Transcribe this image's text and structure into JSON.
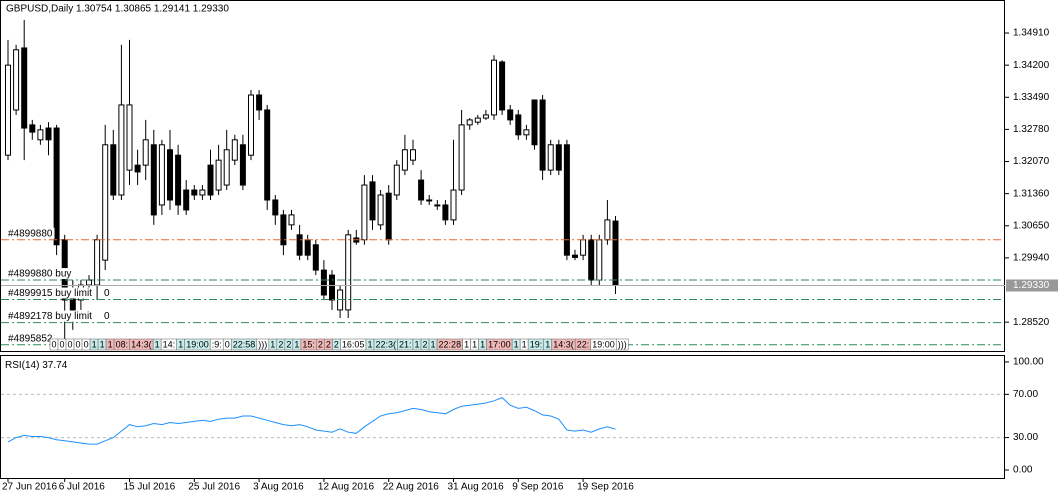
{
  "chart_data": [
    {
      "type": "candlestick",
      "title": "GBPUSD,Daily",
      "header_values": "1.30754 1.30865 1.29141 1.29330",
      "categories": [
        "27 Jun 2016",
        null,
        null,
        null,
        null,
        null,
        null,
        "6 Jul 2016",
        null,
        null,
        null,
        null,
        null,
        null,
        null,
        "15 Jul 2016",
        null,
        null,
        null,
        null,
        null,
        null,
        null,
        "25 Jul 2016",
        null,
        null,
        null,
        null,
        null,
        null,
        null,
        "3 Aug 2016",
        null,
        null,
        null,
        null,
        null,
        null,
        null,
        "12 Aug 2016",
        null,
        null,
        null,
        null,
        null,
        null,
        null,
        "22 Aug 2016",
        null,
        null,
        null,
        null,
        null,
        null,
        null,
        "31 Aug 2016",
        null,
        null,
        null,
        null,
        null,
        null,
        null,
        "9 Sep 2016",
        null,
        null,
        null,
        null,
        null,
        null,
        null,
        "19 Sep 2016",
        null,
        null,
        null,
        null
      ],
      "open": [
        1.3221,
        1.3321,
        1.3458,
        1.3288,
        1.3255,
        1.3281,
        1.3281,
        1.3034,
        1.2923,
        1.2901,
        1.2934,
        1.2934,
        1.2989,
        1.3244,
        1.3133,
        1.3188,
        1.3199,
        1.3199,
        1.3244,
        1.3111,
        1.3233,
        1.3221,
        1.3144,
        1.3144,
        1.3133,
        1.3199,
        1.3144,
        1.3155,
        1.321,
        1.3244,
        1.3221,
        1.3354,
        1.3321,
        1.3122,
        1.3089,
        1.3067,
        1.3045,
        1.3034,
        1.3023,
        1.2967,
        1.2956,
        1.2879,
        1.2879,
        1.3038,
        1.3034,
        1.3162,
        1.3067,
        1.3137,
        1.3133,
        1.3188,
        1.321,
        1.3166,
        1.3122,
        1.3111,
        1.3111,
        1.3078,
        1.3144,
        1.3288,
        1.3294,
        1.3303,
        1.331,
        1.3427,
        1.3321,
        1.331,
        1.3266,
        1.3343,
        1.3343,
        1.3188,
        1.3244,
        1.3244,
        1.3,
        1.3,
        1.3034,
        1.2945,
        1.3034,
        1.30754
      ],
      "high": [
        1.3476,
        1.3465,
        1.352,
        1.3299,
        1.3288,
        1.3294,
        1.3288,
        1.3045,
        1.2945,
        1.2945,
        1.2956,
        1.3045,
        1.3288,
        1.3277,
        1.3465,
        1.3476,
        1.3233,
        1.3299,
        1.3277,
        1.3255,
        1.3277,
        1.3244,
        1.3166,
        1.3155,
        1.3155,
        1.3233,
        1.3244,
        1.3277,
        1.3266,
        1.3266,
        1.3365,
        1.3365,
        1.3332,
        1.3133,
        1.31,
        1.31,
        1.3067,
        1.3045,
        1.3034,
        1.2989,
        1.2967,
        1.2934,
        1.3056,
        1.3056,
        1.3177,
        1.3177,
        1.3144,
        1.3155,
        1.321,
        1.3266,
        1.3255,
        1.3188,
        1.3133,
        1.3122,
        1.3122,
        1.3255,
        1.3321,
        1.3303,
        1.331,
        1.3321,
        1.3442,
        1.3431,
        1.3332,
        1.3321,
        1.3288,
        1.3343,
        1.3354,
        1.3255,
        1.3255,
        1.3255,
        1.3012,
        1.3045,
        1.3045,
        1.3045,
        1.3122,
        1.30865
      ],
      "low": [
        1.321,
        1.331,
        1.321,
        1.3255,
        1.3244,
        1.3221,
        1.3,
        1.2802,
        1.2835,
        1.2879,
        1.2923,
        1.2901,
        1.2967,
        1.3122,
        1.3122,
        1.3155,
        1.3155,
        1.3166,
        1.3067,
        1.3089,
        1.31,
        1.3089,
        1.3089,
        1.3122,
        1.3122,
        1.3122,
        1.3133,
        1.3144,
        1.3199,
        1.3144,
        1.321,
        1.3299,
        1.31,
        1.3067,
        1.3,
        1.3056,
        1.2989,
        1.2989,
        1.2956,
        1.2901,
        1.2879,
        1.2861,
        1.2861,
        1.3023,
        1.3023,
        1.3056,
        1.3056,
        1.3023,
        1.3122,
        1.3177,
        1.3199,
        1.3111,
        1.3111,
        1.31,
        1.3067,
        1.3067,
        1.3133,
        1.3277,
        1.3288,
        1.3299,
        1.3299,
        1.331,
        1.3288,
        1.3255,
        1.3255,
        1.3233,
        1.3166,
        1.3177,
        1.3177,
        1.2989,
        1.2989,
        1.2989,
        1.2934,
        1.2934,
        1.3023,
        1.29141
      ],
      "close": [
        1.342,
        1.3454,
        1.3281,
        1.3272,
        1.3277,
        1.3255,
        1.3023,
        1.2901,
        1.2879,
        1.2934,
        1.2945,
        1.3034,
        1.3244,
        1.3133,
        1.3332,
        1.3332,
        1.3184,
        1.3255,
        1.3089,
        1.3244,
        1.3122,
        1.3111,
        1.31,
        1.3133,
        1.3144,
        1.3133,
        1.321,
        1.3233,
        1.3255,
        1.3155,
        1.3354,
        1.3321,
        1.3122,
        1.3089,
        1.3023,
        1.3089,
        1.3,
        1.3,
        1.2967,
        1.2912,
        1.2901,
        1.2923,
        1.3045,
        1.3029,
        1.3155,
        1.3078,
        1.3133,
        1.3034,
        1.3199,
        1.3233,
        1.3233,
        1.3122,
        1.3122,
        1.3111,
        1.3078,
        1.3144,
        1.3288,
        1.3299,
        1.3303,
        1.331,
        1.3431,
        1.3321,
        1.3299,
        1.3266,
        1.3277,
        1.3244,
        1.3188,
        1.3244,
        1.3188,
        1.3,
        1.2995,
        1.3034,
        1.2945,
        1.3034,
        1.3078,
        1.2933
      ],
      "ylim": [
        1.2786,
        1.3564
      ],
      "yticks": [
        {
          "value": 1.3491,
          "label": "1.34910"
        },
        {
          "value": 1.342,
          "label": "1.34200"
        },
        {
          "value": 1.3349,
          "label": "1.33490"
        },
        {
          "value": 1.3278,
          "label": "1.32780"
        },
        {
          "value": 1.3207,
          "label": "1.32070"
        },
        {
          "value": 1.3136,
          "label": "1.31360"
        },
        {
          "value": 1.3065,
          "label": "1.30650"
        },
        {
          "value": 1.2994,
          "label": "1.29940"
        },
        {
          "value": 1.2852,
          "label": "1.28520"
        }
      ],
      "price_tag": {
        "value": 1.2933,
        "label": "1.29330"
      },
      "orders": [
        {
          "label": "#4899880",
          "value": 1.3034,
          "color": "#e8643c"
        },
        {
          "label": "#4899880 buy",
          "value": 1.2945,
          "color": "#2e8b57"
        },
        {
          "label": "#4899915 buy limit",
          "extra": "0",
          "value": 1.2902,
          "color": "#2e8b57"
        },
        {
          "label": "#4892178 buy limit",
          "extra": "0",
          "value": 1.2851,
          "color": "#2e8b57"
        },
        {
          "label": "#4895852",
          "value": 1.2802,
          "color": "#2e8b57"
        }
      ],
      "time_boxes": [
        {
          "text": "0",
          "color": "#ffffff"
        },
        {
          "text": "0",
          "color": "#ffffff"
        },
        {
          "text": "0",
          "color": "#ffffff"
        },
        {
          "text": "0",
          "color": "#ffffff"
        },
        {
          "text": "0",
          "color": "#ffffff"
        },
        {
          "text": "1",
          "color": "#c8ecec"
        },
        {
          "text": "1",
          "color": "#c8ecec"
        },
        {
          "text": "1",
          "color": "#f2b8b8"
        },
        {
          "text": "08:",
          "color": "#f2b8b8"
        },
        {
          "text": "14:3(",
          "color": "#f2b8b8"
        },
        {
          "text": "1",
          "color": "#c8ecec"
        },
        {
          "text": "14:",
          "color": "#ffffff"
        },
        {
          "text": "1",
          "color": "#c8ecec"
        },
        {
          "text": "19:00",
          "color": "#c8ecec"
        },
        {
          "text": ":9:",
          "color": "#ffffff"
        },
        {
          "text": "0",
          "color": "#ffffff"
        },
        {
          "text": "22:58",
          "color": "#c8ecec"
        },
        {
          "text": ")))",
          "color": "#ffffff"
        },
        {
          "text": "1",
          "color": "#c8ecec"
        },
        {
          "text": "2",
          "color": "#c8ecec"
        },
        {
          "text": "2",
          "color": "#c8ecec"
        },
        {
          "text": "1",
          "color": "#c8ecec"
        },
        {
          "text": "15:",
          "color": "#f2b8b8"
        },
        {
          "text": "2",
          "color": "#f2b8b8"
        },
        {
          "text": "2",
          "color": "#f2b8b8"
        },
        {
          "text": "2",
          "color": "#c8ecec"
        },
        {
          "text": "16:05",
          "color": "#ffffff"
        },
        {
          "text": "1",
          "color": "#c8ecec"
        },
        {
          "text": "22:3(",
          "color": "#c8ecec"
        },
        {
          "text": "21:",
          "color": "#c8ecec"
        },
        {
          "text": "1",
          "color": "#c8ecec"
        },
        {
          "text": "2",
          "color": "#c8ecec"
        },
        {
          "text": "1",
          "color": "#c8ecec"
        },
        {
          "text": "22:28",
          "color": "#f2b8b8"
        },
        {
          "text": "1",
          "color": "#ffffff"
        },
        {
          "text": "1",
          "color": "#ffffff"
        },
        {
          "text": "1",
          "color": "#c8ecec"
        },
        {
          "text": "17:00",
          "color": "#f2b8b8"
        },
        {
          "text": "1",
          "color": "#c8ecec"
        },
        {
          "text": "1",
          "color": "#ffffff"
        },
        {
          "text": "19:",
          "color": "#c8ecec"
        },
        {
          "text": "1",
          "color": "#c8ecec"
        },
        {
          "text": "14:3(",
          "color": "#f2b8b8"
        },
        {
          "text": "22:",
          "color": "#f2b8b8"
        },
        {
          "text": "19:00",
          "color": "#ffffff"
        },
        {
          "text": ")))",
          "color": "#ffffff"
        }
      ]
    },
    {
      "type": "line",
      "title": "RSI(14)",
      "color": "#1e90ff",
      "values": [
        26,
        30,
        32,
        31,
        31,
        30,
        28,
        27,
        26,
        25,
        24,
        24,
        27,
        30,
        36,
        42,
        40,
        41,
        43,
        42,
        44,
        43,
        44,
        45,
        46,
        45,
        47,
        48,
        48,
        50,
        50,
        48,
        46,
        44,
        42,
        41,
        42,
        40,
        37,
        36,
        35,
        38,
        35,
        34,
        40,
        45,
        50,
        52,
        53,
        55,
        57,
        56,
        54,
        53,
        52,
        56,
        59,
        60,
        61,
        62,
        64,
        67,
        60,
        57,
        58,
        55,
        51,
        50,
        47,
        37,
        36,
        37,
        35,
        38,
        40,
        37.74
      ],
      "ylim": [
        -7.4,
        105.5
      ],
      "yticks": [
        {
          "value": 100,
          "label": "100.00"
        },
        {
          "value": 70,
          "label": "70.00"
        },
        {
          "value": 30,
          "label": "30.00"
        },
        {
          "value": 0,
          "label": "0.00"
        }
      ]
    }
  ]
}
